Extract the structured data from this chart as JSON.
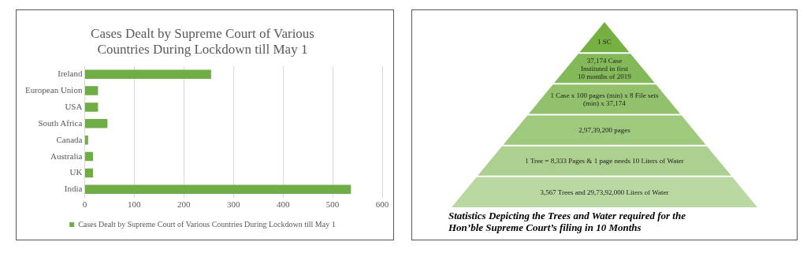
{
  "chart_data": [
    {
      "type": "bar",
      "title": "Cases Dealt by Supreme Court of Various Countries During Lockdown till May 1",
      "orientation": "horizontal",
      "categories": [
        "Ireland",
        "European Union",
        "USA",
        "South Africa",
        "Canada",
        "Australia",
        "UK",
        "India"
      ],
      "series": [
        {
          "name": "Cases Dealt by Supreme Court of Various Countries During Lockdown till May 1",
          "color": "#70ad47",
          "values": [
            255,
            27,
            27,
            46,
            7,
            17,
            17,
            537
          ]
        }
      ],
      "xlim": [
        0,
        600
      ],
      "xticks": [
        0,
        100,
        200,
        300,
        400,
        500,
        600
      ],
      "grid": "x",
      "legend": "bottom"
    },
    {
      "type": "other",
      "title": "Statistics Depicting the Trees and Water required for the Hon’ble Supreme Court’s filing in 10 Months",
      "categories": [
        "1 SC",
        "37,174 Case Instituted in first 10 months of 2019",
        "1 Case x 100 pages (min) x 8 File sets (min) x 37,174",
        "2,97,39,200 pages",
        "1 Tree = 8,333 Pages & 1 page needs 10 Liters of Water",
        "3,567 Trees and 29,73,92,000 Liters of Water"
      ],
      "colors": [
        "#76b043",
        "#84b95a",
        "#92c16b",
        "#9fc97d",
        "#acd08f",
        "#b9d8a2"
      ]
    }
  ]
}
